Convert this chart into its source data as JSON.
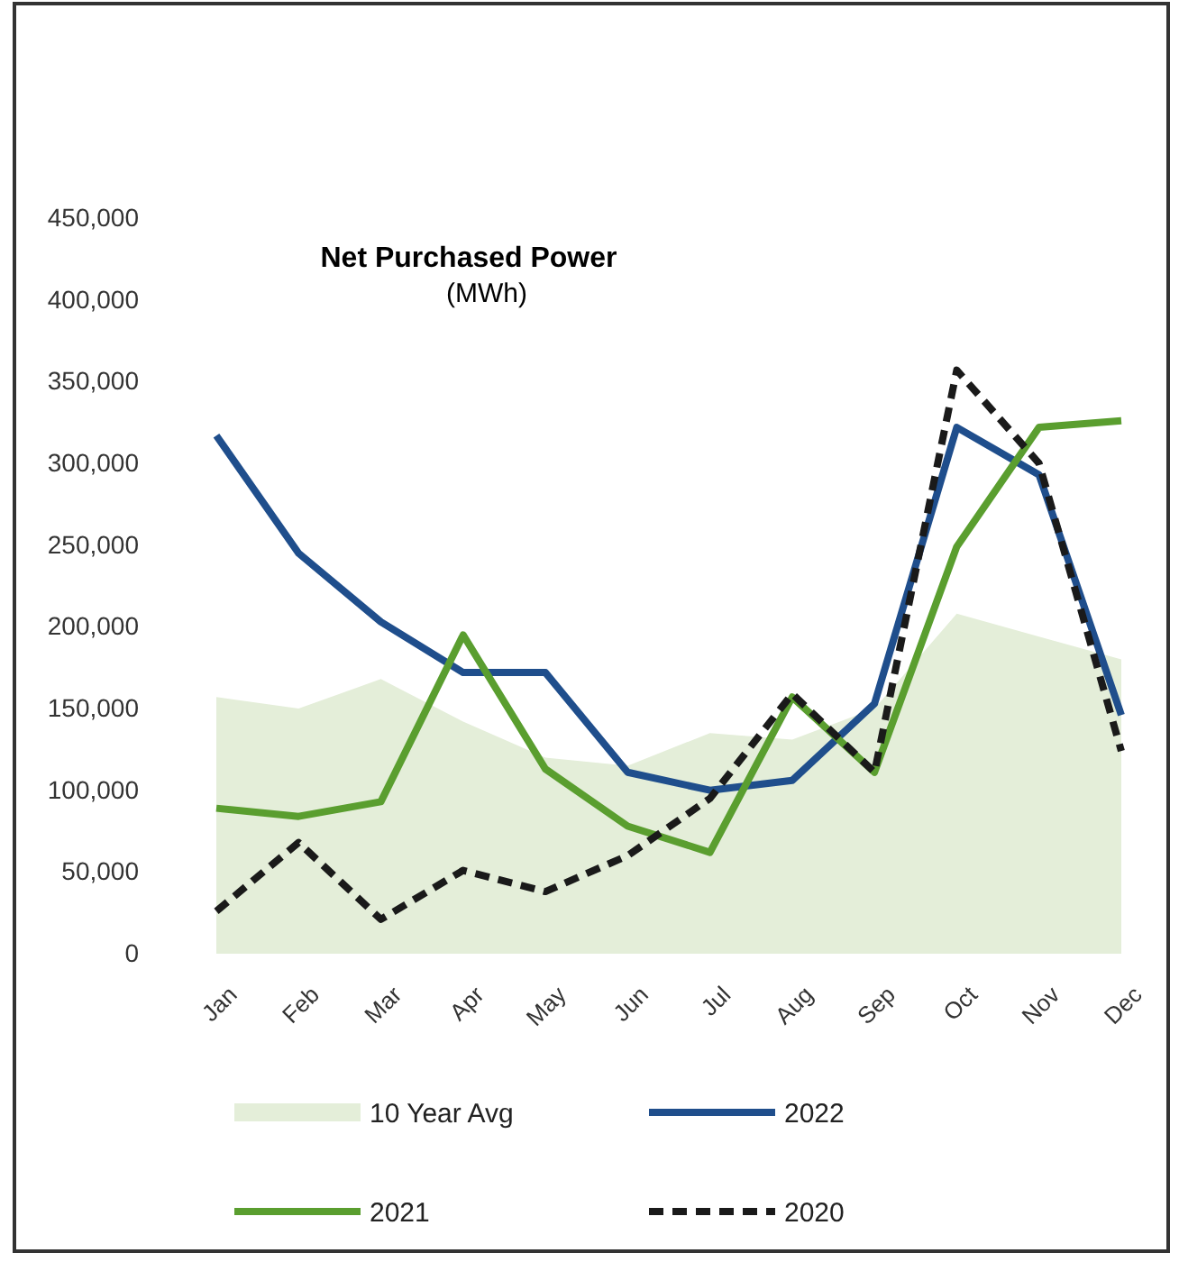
{
  "chart_data": {
    "type": "line",
    "title": "Net Purchased Power",
    "subtitle": "(MWh)",
    "categories": [
      "Jan",
      "Feb",
      "Mar",
      "Apr",
      "May",
      "Jun",
      "Jul",
      "Aug",
      "Sep",
      "Oct",
      "Nov",
      "Dec"
    ],
    "ylim": [
      0,
      450000
    ],
    "yticks": [
      {
        "value": 0,
        "label": "0"
      },
      {
        "value": 50000,
        "label": "50,000"
      },
      {
        "value": 100000,
        "label": "100,000"
      },
      {
        "value": 150000,
        "label": "150,000"
      },
      {
        "value": 200000,
        "label": "200,000"
      },
      {
        "value": 250000,
        "label": "250,000"
      },
      {
        "value": 300000,
        "label": "300,000"
      },
      {
        "value": 350000,
        "label": "350,000"
      },
      {
        "value": 400000,
        "label": "400,000"
      },
      {
        "value": 450000,
        "label": "450,000"
      }
    ],
    "grid": false,
    "legend": "bottom",
    "marker": "none",
    "series": [
      {
        "name": "10 Year Avg",
        "type": "area",
        "color": "#e4eed9",
        "values": [
          157000,
          150000,
          168000,
          142000,
          120000,
          115000,
          135000,
          131000,
          150000,
          208000,
          194000,
          180000
        ]
      },
      {
        "name": "2022",
        "color": "#1f4e8c",
        "line_style": "solid",
        "values": [
          317000,
          245000,
          203000,
          172000,
          172000,
          111000,
          100000,
          106000,
          153000,
          322000,
          293000,
          146000
        ]
      },
      {
        "name": "2021",
        "color": "#5a9e2f",
        "line_style": "solid",
        "values": [
          89000,
          84000,
          93000,
          195000,
          113000,
          78000,
          62000,
          157000,
          111000,
          249000,
          322000,
          326000
        ]
      },
      {
        "name": "2020",
        "color": "#1a1a1a",
        "line_style": "dashed",
        "values": [
          26000,
          68000,
          21000,
          51000,
          38000,
          60000,
          95000,
          159000,
          111000,
          357000,
          300000,
          124000
        ]
      }
    ]
  }
}
